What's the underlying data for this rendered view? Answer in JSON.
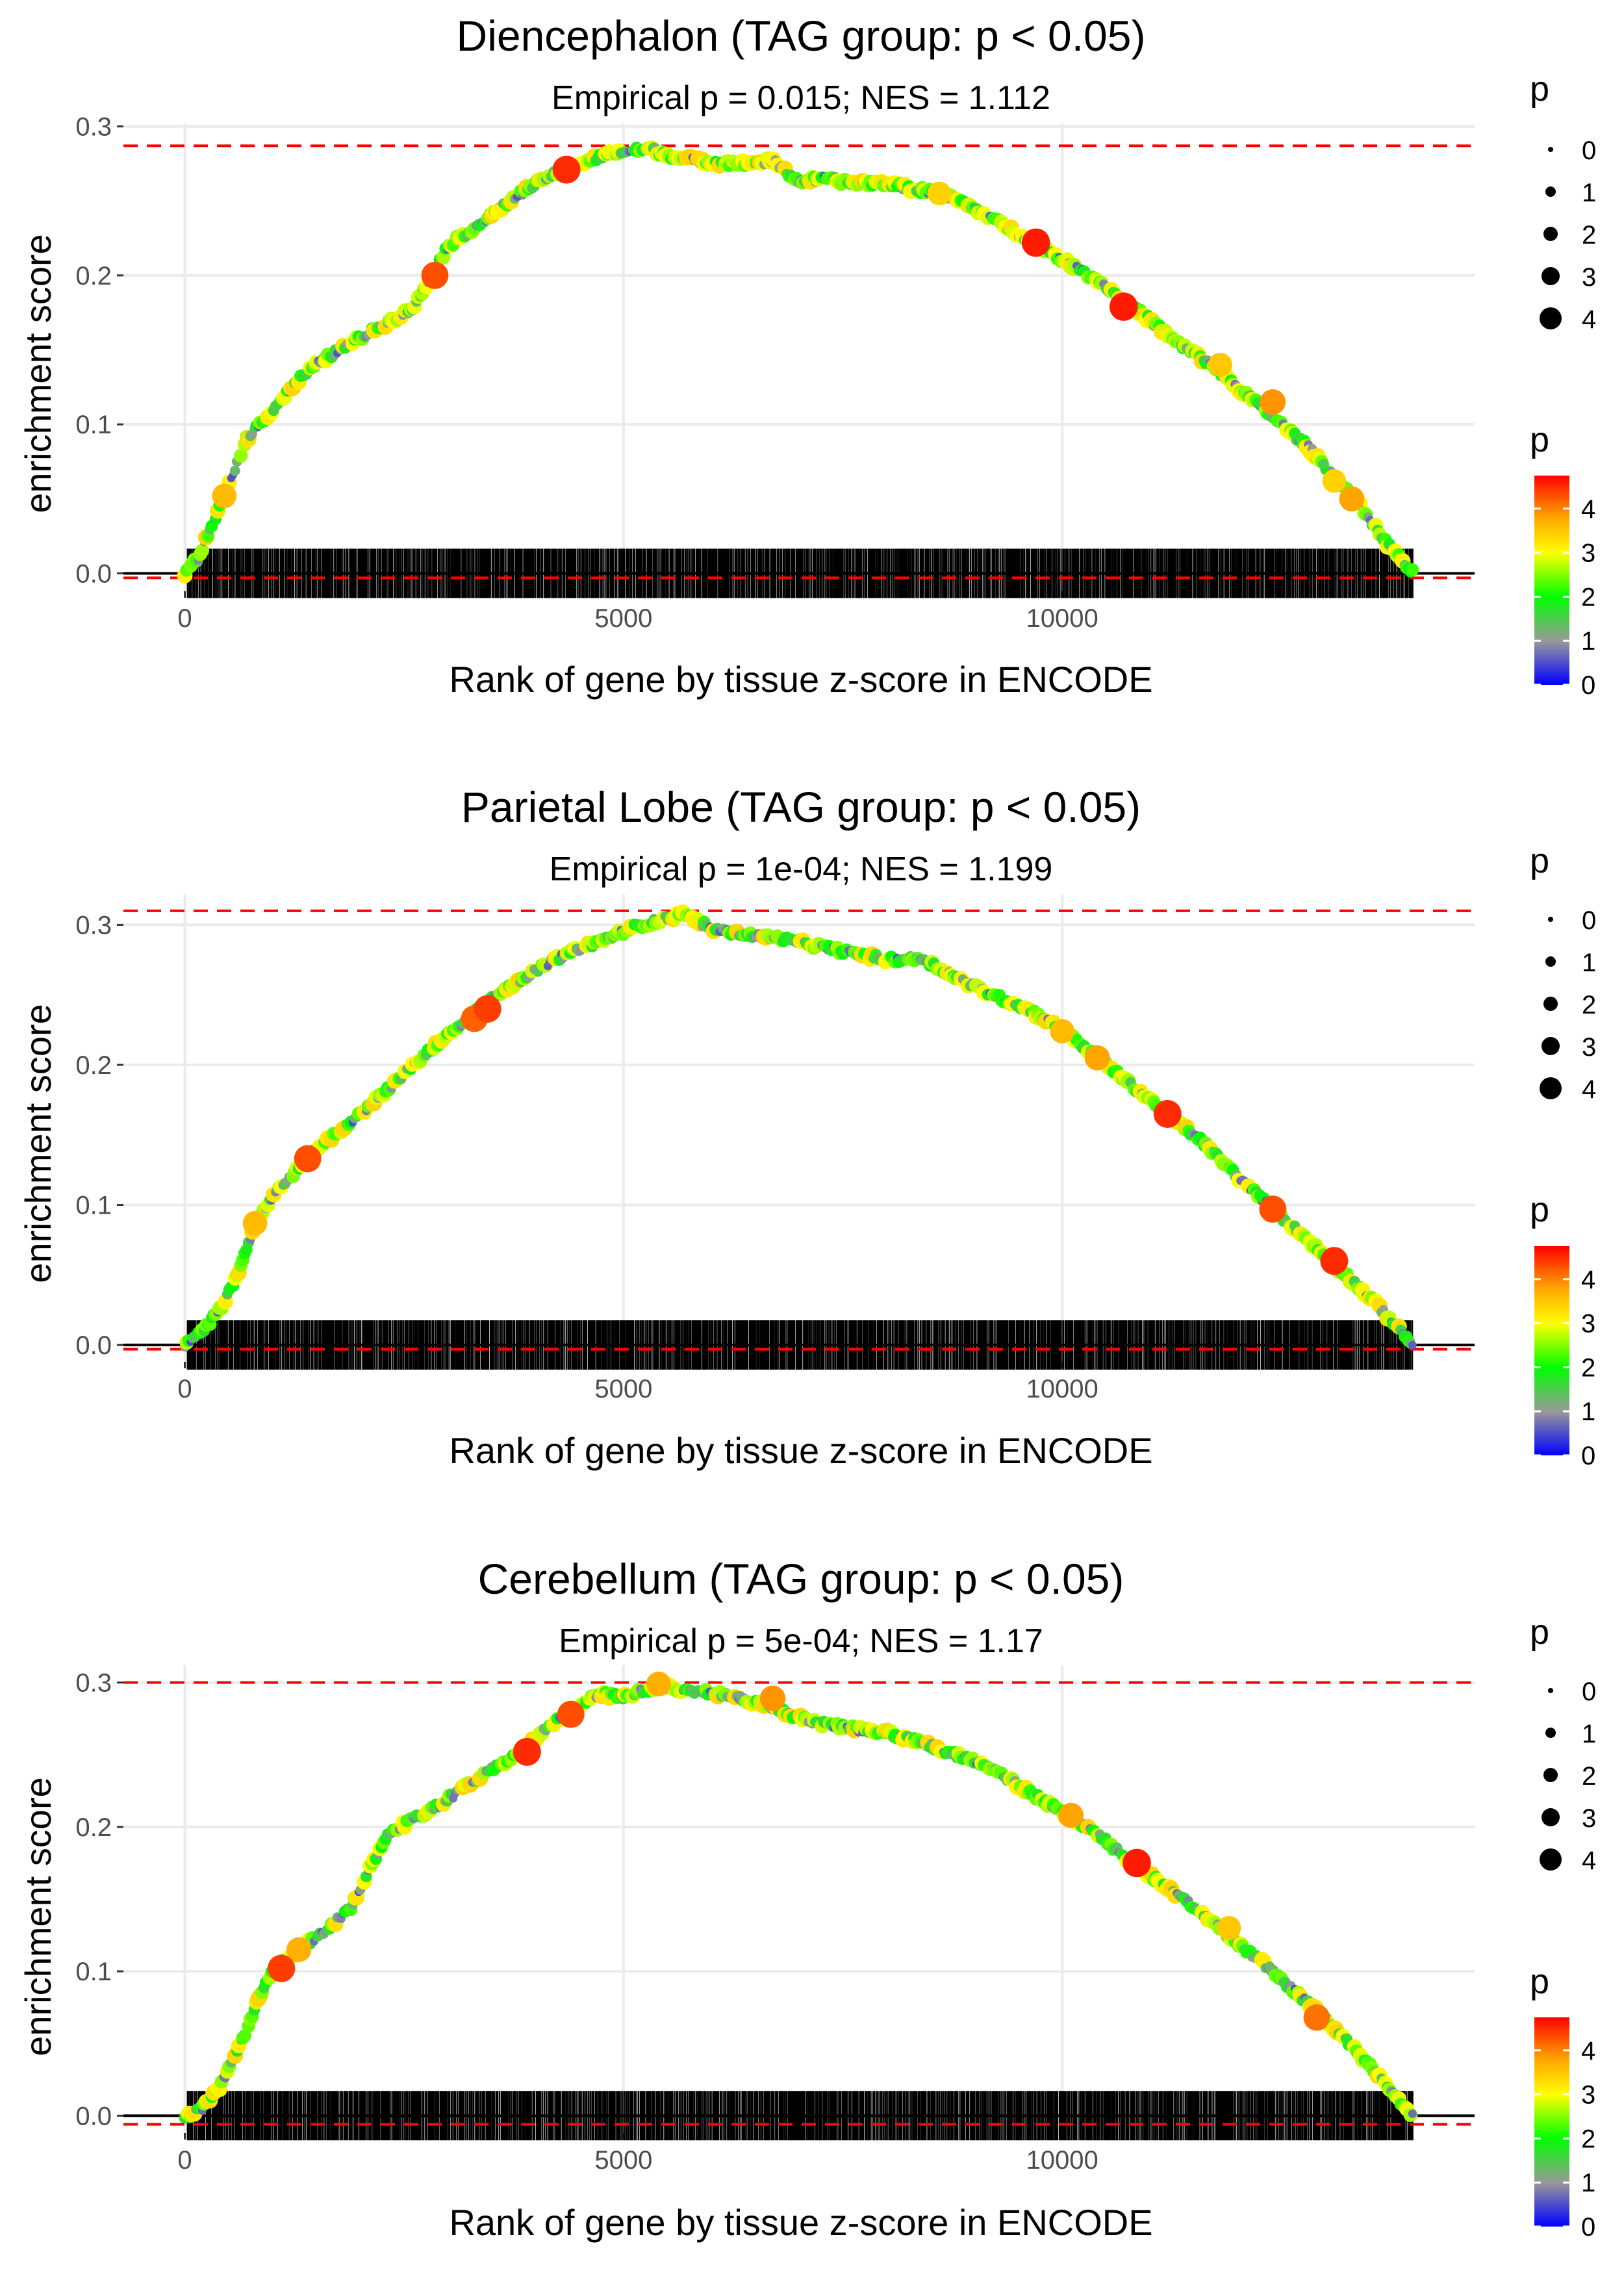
{
  "chart_data": [
    {
      "type": "line",
      "title": "Diencephalon (TAG group: p < 0.05)",
      "subtitle": "Empirical p = 0.015; NES = 1.112",
      "xlabel": "Rank of gene by tissue z-score in ENCODE",
      "ylabel": "enrichment score",
      "xlim": [
        -700,
        14700
      ],
      "ylim": [
        -0.012,
        0.302
      ],
      "x_ticks": [
        0,
        5000,
        10000
      ],
      "x_tick_labels": [
        "0",
        "5000",
        "10000"
      ],
      "y_ticks": [
        0.0,
        0.1,
        0.2,
        0.3
      ],
      "y_tick_labels": [
        "0.0",
        "0.1",
        "0.2",
        "0.3"
      ],
      "max_es": 0.287,
      "min_es": -0.003,
      "curve": {
        "x": [
          0,
          150,
          300,
          500,
          700,
          1000,
          1300,
          1500,
          1700,
          2000,
          2300,
          2600,
          2800,
          3000,
          3300,
          3600,
          3900,
          4200,
          4500,
          4800,
          5000,
          5300,
          5600,
          6000,
          6400,
          6700,
          7000,
          7300,
          7600,
          8000,
          8300,
          8600,
          8900,
          9200,
          9500,
          9800,
          10100,
          10400,
          10700,
          11000,
          11300,
          11700,
          12000,
          12400,
          12800,
          13100,
          13400,
          13700,
          14000
        ],
        "y": [
          0.0,
          0.01,
          0.03,
          0.06,
          0.09,
          0.11,
          0.13,
          0.14,
          0.148,
          0.158,
          0.168,
          0.178,
          0.198,
          0.22,
          0.232,
          0.245,
          0.258,
          0.268,
          0.275,
          0.281,
          0.283,
          0.285,
          0.279,
          0.276,
          0.275,
          0.277,
          0.263,
          0.265,
          0.262,
          0.262,
          0.258,
          0.255,
          0.248,
          0.238,
          0.228,
          0.218,
          0.207,
          0.197,
          0.183,
          0.17,
          0.155,
          0.14,
          0.125,
          0.105,
          0.085,
          0.065,
          0.045,
          0.02,
          0.0
        ]
      },
      "highlight_points": [
        {
          "x": 450,
          "y": 0.052,
          "p": 3.6
        },
        {
          "x": 2850,
          "y": 0.2,
          "p": 4.3
        },
        {
          "x": 4350,
          "y": 0.271,
          "p": 4.5
        },
        {
          "x": 8600,
          "y": 0.255,
          "p": 3.4
        },
        {
          "x": 9700,
          "y": 0.222,
          "p": 4.6
        },
        {
          "x": 10700,
          "y": 0.179,
          "p": 4.6
        },
        {
          "x": 11800,
          "y": 0.14,
          "p": 3.5
        },
        {
          "x": 12400,
          "y": 0.115,
          "p": 3.9
        },
        {
          "x": 13100,
          "y": 0.062,
          "p": 3.4
        },
        {
          "x": 13300,
          "y": 0.05,
          "p": 3.8
        }
      ],
      "size_legend": {
        "title": "p",
        "values": [
          "0",
          "1",
          "2",
          "3",
          "4"
        ]
      },
      "color_legend": {
        "title": "p",
        "ticks": [
          "0",
          "1",
          "2",
          "3",
          "4"
        ],
        "max": 4.75
      }
    },
    {
      "type": "line",
      "title": "Parietal Lobe (TAG group: p < 0.05)",
      "subtitle": "Empirical p = 1e-04; NES = 1.199",
      "xlabel": "Rank of gene by tissue z-score in ENCODE",
      "ylabel": "enrichment score",
      "xlim": [
        -700,
        14700
      ],
      "ylim": [
        -0.012,
        0.322
      ],
      "x_ticks": [
        0,
        5000,
        10000
      ],
      "x_tick_labels": [
        "0",
        "5000",
        "10000"
      ],
      "y_ticks": [
        0.0,
        0.1,
        0.2,
        0.3
      ],
      "y_tick_labels": [
        "0.0",
        "0.1",
        "0.2",
        "0.3"
      ],
      "max_es": 0.31,
      "min_es": -0.003,
      "curve": {
        "x": [
          0,
          200,
          400,
          600,
          800,
          1000,
          1200,
          1500,
          1800,
          2100,
          2400,
          2700,
          3000,
          3300,
          3600,
          3900,
          4200,
          4500,
          4800,
          5100,
          5400,
          5700,
          6000,
          6400,
          6800,
          7200,
          7600,
          8000,
          8400,
          8800,
          9200,
          9600,
          10000,
          10400,
          10800,
          11200,
          11600,
          12000,
          12400,
          12800,
          13200,
          13600,
          14000
        ],
        "y": [
          0.0,
          0.01,
          0.025,
          0.05,
          0.085,
          0.105,
          0.12,
          0.14,
          0.155,
          0.17,
          0.188,
          0.205,
          0.222,
          0.237,
          0.252,
          0.263,
          0.275,
          0.283,
          0.29,
          0.298,
          0.303,
          0.308,
          0.297,
          0.293,
          0.29,
          0.285,
          0.28,
          0.275,
          0.276,
          0.262,
          0.25,
          0.24,
          0.225,
          0.205,
          0.185,
          0.165,
          0.145,
          0.12,
          0.097,
          0.075,
          0.052,
          0.028,
          0.0
        ]
      },
      "highlight_points": [
        {
          "x": 800,
          "y": 0.087,
          "p": 3.6
        },
        {
          "x": 1400,
          "y": 0.133,
          "p": 4.3
        },
        {
          "x": 3300,
          "y": 0.233,
          "p": 4.2
        },
        {
          "x": 3450,
          "y": 0.24,
          "p": 4.4
        },
        {
          "x": 10000,
          "y": 0.224,
          "p": 3.6
        },
        {
          "x": 10400,
          "y": 0.205,
          "p": 3.8
        },
        {
          "x": 11200,
          "y": 0.165,
          "p": 4.5
        },
        {
          "x": 12400,
          "y": 0.097,
          "p": 4.3
        },
        {
          "x": 13100,
          "y": 0.06,
          "p": 4.5
        }
      ],
      "size_legend": {
        "title": "p",
        "values": [
          "0",
          "1",
          "2",
          "3",
          "4"
        ]
      },
      "color_legend": {
        "title": "p",
        "ticks": [
          "0",
          "1",
          "2",
          "3",
          "4"
        ],
        "max": 4.75
      }
    },
    {
      "type": "line",
      "title": "Cerebellum (TAG group: p < 0.05)",
      "subtitle": "Empirical p = 5e-04; NES = 1.17",
      "xlabel": "Rank of gene by tissue z-score in ENCODE",
      "ylabel": "enrichment score",
      "xlim": [
        -700,
        14700
      ],
      "ylim": [
        -0.012,
        0.312
      ],
      "x_ticks": [
        0,
        5000,
        10000
      ],
      "x_tick_labels": [
        "0",
        "5000",
        "10000"
      ],
      "y_ticks": [
        0.0,
        0.1,
        0.2,
        0.3
      ],
      "y_tick_labels": [
        "0.0",
        "0.1",
        "0.2",
        "0.3"
      ],
      "max_es": 0.3,
      "min_es": -0.006,
      "curve": {
        "x": [
          0,
          200,
          400,
          600,
          800,
          1000,
          1300,
          1600,
          1900,
          2100,
          2300,
          2600,
          2900,
          3200,
          3500,
          3800,
          4100,
          4400,
          4700,
          5000,
          5400,
          5700,
          6000,
          6400,
          6800,
          7200,
          7600,
          8000,
          8400,
          8800,
          9200,
          9600,
          10000,
          10400,
          10800,
          11200,
          11600,
          12000,
          12400,
          12800,
          13200,
          13600,
          14000
        ],
        "y": [
          0.0,
          0.005,
          0.02,
          0.045,
          0.075,
          0.1,
          0.115,
          0.128,
          0.145,
          0.17,
          0.195,
          0.205,
          0.215,
          0.228,
          0.24,
          0.25,
          0.268,
          0.28,
          0.292,
          0.29,
          0.298,
          0.295,
          0.293,
          0.288,
          0.28,
          0.272,
          0.268,
          0.265,
          0.258,
          0.25,
          0.24,
          0.225,
          0.21,
          0.195,
          0.175,
          0.158,
          0.14,
          0.12,
          0.1,
          0.078,
          0.055,
          0.028,
          0.0
        ]
      },
      "highlight_points": [
        {
          "x": 1100,
          "y": 0.102,
          "p": 4.4
        },
        {
          "x": 1300,
          "y": 0.115,
          "p": 3.7
        },
        {
          "x": 3900,
          "y": 0.252,
          "p": 4.5
        },
        {
          "x": 4400,
          "y": 0.278,
          "p": 4.3
        },
        {
          "x": 5400,
          "y": 0.299,
          "p": 3.7
        },
        {
          "x": 6700,
          "y": 0.289,
          "p": 3.9
        },
        {
          "x": 10100,
          "y": 0.208,
          "p": 3.8
        },
        {
          "x": 10850,
          "y": 0.175,
          "p": 4.6
        },
        {
          "x": 11900,
          "y": 0.13,
          "p": 3.5
        },
        {
          "x": 12900,
          "y": 0.068,
          "p": 4.1
        }
      ],
      "size_legend": {
        "title": "p",
        "values": [
          "0",
          "1",
          "2",
          "3",
          "4"
        ]
      },
      "color_legend": {
        "title": "p",
        "ticks": [
          "0",
          "1",
          "2",
          "3",
          "4"
        ],
        "max": 4.75
      }
    }
  ]
}
